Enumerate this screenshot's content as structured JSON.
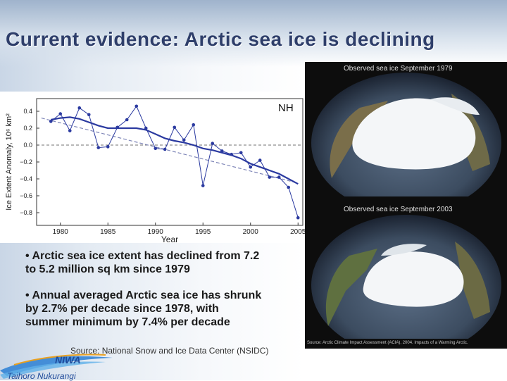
{
  "slide": {
    "title": "Current evidence: Arctic sea ice is declining",
    "bullets": [
      "• Arctic sea ice extent has declined from 7.2 to 5.2 million sq km since 1979",
      "• Annual averaged Arctic sea ice has shrunk by 2.7% per decade since 1978, with summer minimum by 7.4% per decade"
    ],
    "source_note": "Source: National Snow and Ice Data Center (NSIDC)",
    "logo_text": "Taihoro Nukurangi"
  },
  "photos": {
    "top_caption": "Observed sea ice September 1979",
    "bottom_caption": "Observed sea ice September 2003",
    "source_caption": "Source: Arctic Climate Impact Assessment (ACIA), 2004. Impacts of a Warming Arctic."
  },
  "colors": {
    "series": "#2b3aa0",
    "trend": "#7f86b8",
    "title": "#2e3e6a"
  },
  "chart_data": {
    "type": "line",
    "hemisphere_label": "NH",
    "xlabel": "Year",
    "ylabel": "Ice Extent Anomaly, 10⁶ km²",
    "xlim": [
      1977.5,
      2005.5
    ],
    "ylim": [
      -0.95,
      0.55
    ],
    "xticks": [
      1980,
      1985,
      1990,
      1995,
      2000,
      2005
    ],
    "yticks": [
      0.4,
      0.2,
      0.0,
      -0.2,
      -0.4,
      -0.6,
      -0.8
    ],
    "ytick_labels": [
      "0.4",
      "0.2",
      "0.0",
      "−0.2",
      "−0.4",
      "−0.6",
      "−0.8"
    ],
    "x": [
      1979,
      1980,
      1981,
      1982,
      1983,
      1984,
      1985,
      1986,
      1987,
      1988,
      1989,
      1990,
      1991,
      1992,
      1993,
      1994,
      1995,
      1996,
      1997,
      1998,
      1999,
      2000,
      2001,
      2002,
      2003,
      2004,
      2005
    ],
    "annual": [
      0.28,
      0.37,
      0.17,
      0.44,
      0.36,
      -0.03,
      -0.02,
      0.21,
      0.3,
      0.46,
      0.2,
      -0.04,
      -0.05,
      0.21,
      0.06,
      0.24,
      -0.48,
      0.02,
      -0.07,
      -0.11,
      -0.09,
      -0.26,
      -0.18,
      -0.38,
      -0.38,
      -0.5,
      -0.86
    ],
    "smoothed": [
      0.3,
      0.32,
      0.33,
      0.31,
      0.27,
      0.23,
      0.2,
      0.2,
      0.2,
      0.2,
      0.18,
      0.13,
      0.08,
      0.05,
      0.03,
      0.0,
      -0.04,
      -0.06,
      -0.09,
      -0.12,
      -0.16,
      -0.22,
      -0.26,
      -0.3,
      -0.34,
      -0.4,
      -0.46
    ],
    "trend": {
      "x": [
        1978,
        2005
      ],
      "y": [
        0.32,
        -0.45
      ]
    },
    "grid": false,
    "legend": "none"
  }
}
